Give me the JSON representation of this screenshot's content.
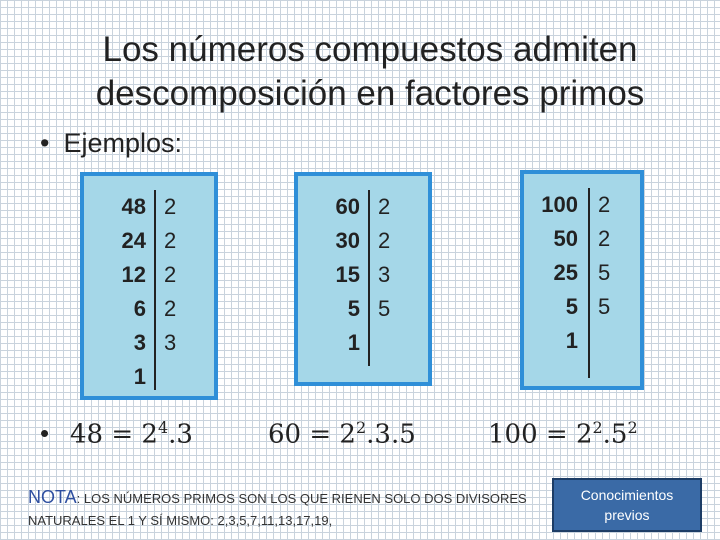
{
  "title": "Los números compuestos admiten descomposición en factores primos",
  "bullets": {
    "dot": "•",
    "ejemplos": "Ejemplos:"
  },
  "tables": [
    {
      "rows": [
        [
          "48",
          "2"
        ],
        [
          "24",
          "2"
        ],
        [
          "12",
          "2"
        ],
        [
          "6",
          "2"
        ],
        [
          "3",
          "3"
        ],
        [
          "1",
          ""
        ]
      ]
    },
    {
      "rows": [
        [
          "60",
          "2"
        ],
        [
          "30",
          "2"
        ],
        [
          "15",
          "3"
        ],
        [
          "5",
          "5"
        ],
        [
          "1",
          ""
        ]
      ]
    },
    {
      "rows": [
        [
          "100",
          "2"
        ],
        [
          "50",
          "2"
        ],
        [
          "25",
          "5"
        ],
        [
          "5",
          "5"
        ],
        [
          "1",
          ""
        ]
      ]
    }
  ],
  "formulas": {
    "f1": {
      "lhs": "48 = 2",
      "exp": "4",
      "rest": ".3"
    },
    "f2": {
      "lhs": "60 = 2",
      "exp": "2",
      "rest": ".3.5"
    },
    "f3": {
      "lhs": "100 = 2",
      "exp": "2",
      "mid": ".5",
      "exp2": "2"
    }
  },
  "note": {
    "label": "NOTA",
    "text": ": LOS NÚMEROS PRIMOS SON LOS QUE RIENEN SOLO DOS DIVISORES NATURALES EL 1 Y SÍ MISMO: 2,3,5,7,11,13,17,19,"
  },
  "button": {
    "label": "Conocimientos previos"
  }
}
